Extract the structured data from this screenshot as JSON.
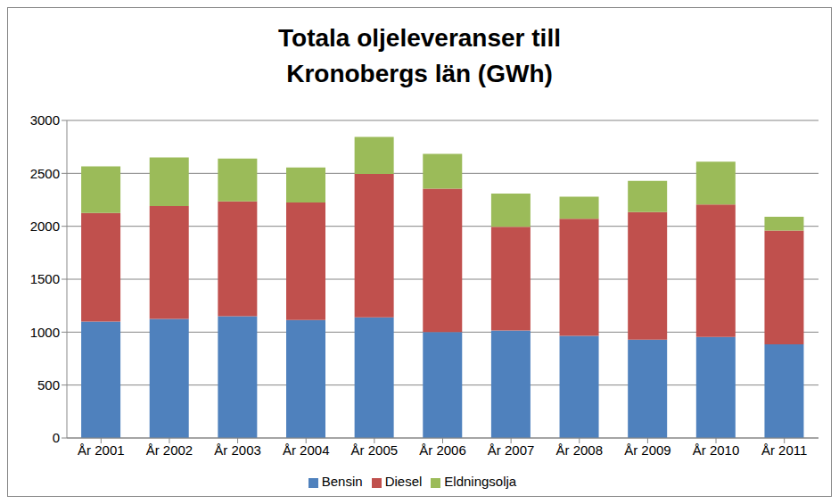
{
  "chart_data": {
    "type": "bar",
    "title": "Totala oljeleveranser till Kronobergs län (GWh)",
    "categories": [
      "År 2001",
      "År 2002",
      "År 2003",
      "År 2004",
      "År 2005",
      "År 2006",
      "År 2007",
      "År 2008",
      "År 2009",
      "År 2010",
      "År 2011"
    ],
    "series": [
      {
        "name": "Bensin",
        "color": "#4f81bd",
        "values": [
          1100,
          1125,
          1150,
          1115,
          1140,
          1000,
          1015,
          965,
          930,
          955,
          885
        ]
      },
      {
        "name": "Diesel",
        "color": "#c0504d",
        "values": [
          1025,
          1065,
          1085,
          1110,
          1355,
          1355,
          980,
          1105,
          1205,
          1250,
          1075
        ]
      },
      {
        "name": "Eldningsolja",
        "color": "#9bbb59",
        "values": [
          440,
          460,
          405,
          330,
          350,
          330,
          315,
          210,
          295,
          405,
          130
        ]
      }
    ],
    "ylim": [
      0,
      3000
    ],
    "yticks": [
      0,
      500,
      1000,
      1500,
      2000,
      2500,
      3000
    ],
    "stacked": true,
    "grid": true,
    "legend": "bottom"
  }
}
